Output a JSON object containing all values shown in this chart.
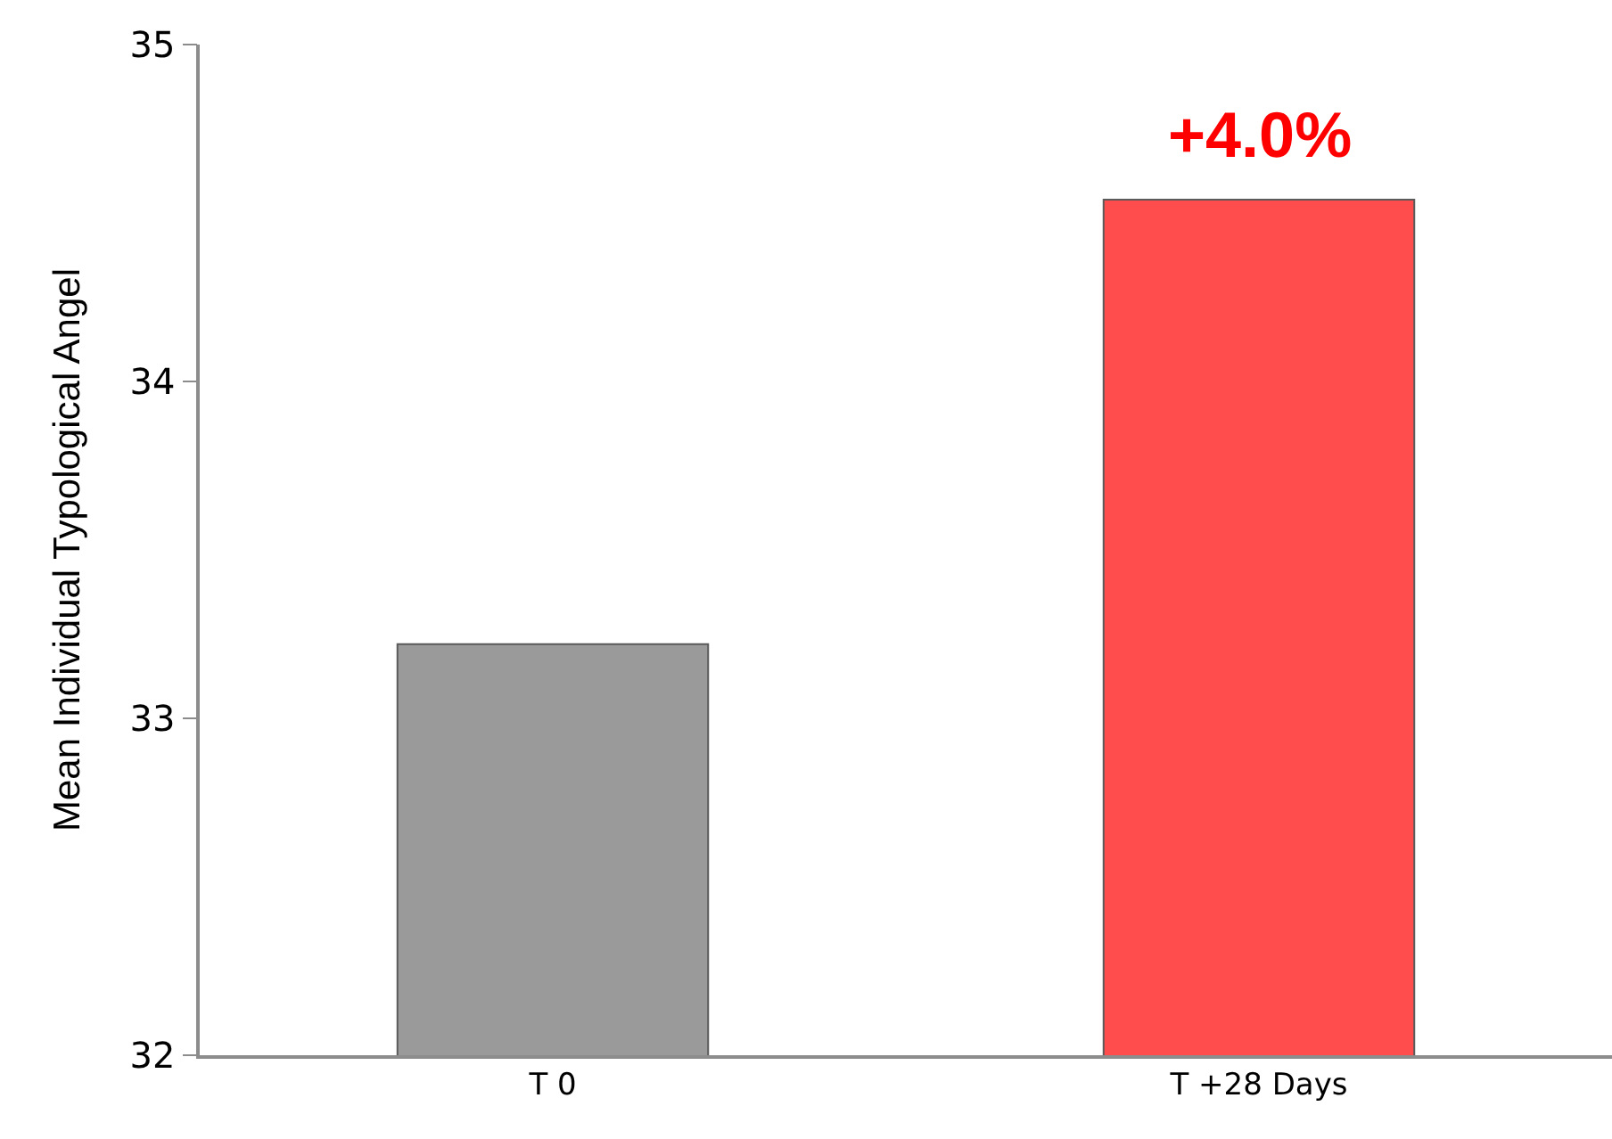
{
  "chart_data": {
    "type": "bar",
    "ylabel": "Mean Individual Typological Angel",
    "categories": [
      "T 0",
      "T +28 Days"
    ],
    "values": [
      33.22,
      34.54
    ],
    "colors": [
      "#9a9a9a",
      "#ff4c4c"
    ],
    "ylim": [
      32,
      35
    ],
    "yticks": [
      32,
      33,
      34,
      35
    ],
    "annotations": [
      {
        "text": "+4.0%",
        "x": "T +28 Days",
        "y": 34.54
      }
    ]
  }
}
